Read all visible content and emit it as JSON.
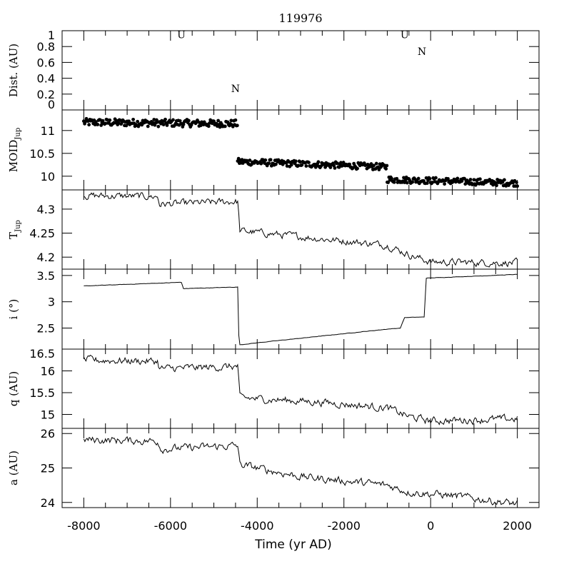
{
  "chart_data": {
    "type": "line",
    "title": "119976",
    "xlabel": "Time (yr AD)",
    "xlim": [
      -8500,
      2500
    ],
    "x_ticks": [
      "-8000",
      "-6000",
      "-4000",
      "-2000",
      "0",
      "2000"
    ],
    "x_tick_values": [
      -8000,
      -6000,
      -4000,
      -2000,
      0,
      2000
    ],
    "panels": [
      {
        "id": "dist",
        "type": "annotation",
        "ylabel": "Dist. (AU)",
        "ylim": [
          0,
          1
        ],
        "y_ticks": [
          "0",
          "0.2",
          "0.4",
          "0.6",
          "0.8",
          "1"
        ],
        "y_tick_values": [
          0,
          0.2,
          0.4,
          0.6,
          0.8,
          1
        ],
        "markers": [
          {
            "label": "U",
            "x": -5750,
            "y": 0.95
          },
          {
            "label": "N",
            "x": -4500,
            "y": 0.27
          },
          {
            "label": "U",
            "x": -600,
            "y": 0.95
          },
          {
            "label": "N",
            "x": -200,
            "y": 0.74
          }
        ]
      },
      {
        "id": "moid",
        "type": "scatter",
        "ylabel": "MOID",
        "ylabel_sub": "Jup",
        "ylim": [
          9.7,
          11.45
        ],
        "y_ticks": [
          "10",
          "10.5",
          "11"
        ],
        "y_tick_values": [
          10,
          10.5,
          11
        ],
        "segments": [
          {
            "x_start": -8000,
            "x_end": -4450,
            "y_start": 11.18,
            "y_end": 11.15,
            "amp": 0.08
          },
          {
            "x_start": -4450,
            "x_end": -1000,
            "y_start": 10.32,
            "y_end": 10.2,
            "amp": 0.07
          },
          {
            "x_start": -1000,
            "x_end": 2000,
            "y_start": 9.93,
            "y_end": 9.85,
            "amp": 0.07
          }
        ]
      },
      {
        "id": "tjup",
        "type": "line",
        "ylabel": "T",
        "ylabel_sub": "Jup",
        "ylim": [
          4.175,
          4.34
        ],
        "y_ticks": [
          "4.2",
          "4.25",
          "4.3"
        ],
        "y_tick_values": [
          4.2,
          4.25,
          4.3
        ],
        "breakpoints": [
          [
            -8000,
            4.328
          ],
          [
            -6300,
            4.326
          ],
          [
            -6250,
            4.31
          ],
          [
            -4450,
            4.316
          ],
          [
            -4400,
            4.255
          ],
          [
            -2500,
            4.238
          ],
          [
            -1000,
            4.225
          ],
          [
            -500,
            4.205
          ],
          [
            0,
            4.19
          ],
          [
            2000,
            4.188
          ]
        ],
        "amp": 0.006
      },
      {
        "id": "incl",
        "type": "line",
        "ylabel": "i (°)",
        "ylim": [
          2.1,
          3.62
        ],
        "y_ticks": [
          "2.5",
          "3",
          "3.5"
        ],
        "y_tick_values": [
          2.5,
          3,
          3.5
        ],
        "breakpoints": [
          [
            -8000,
            3.3
          ],
          [
            -5750,
            3.37
          ],
          [
            -5700,
            3.25
          ],
          [
            -4450,
            3.28
          ],
          [
            -4420,
            2.18
          ],
          [
            -4000,
            2.22
          ],
          [
            -1000,
            2.48
          ],
          [
            -700,
            2.5
          ],
          [
            -600,
            2.7
          ],
          [
            -150,
            2.71
          ],
          [
            -100,
            3.45
          ],
          [
            2000,
            3.52
          ]
        ],
        "amp": 0.003
      },
      {
        "id": "q",
        "type": "line",
        "ylabel": "q (AU)",
        "ylim": [
          14.68,
          16.5
        ],
        "y_ticks": [
          "15",
          "15.5",
          "16",
          "16.5"
        ],
        "y_tick_values": [
          15,
          15.5,
          16,
          16.5
        ],
        "breakpoints": [
          [
            -8000,
            16.25
          ],
          [
            -6300,
            16.22
          ],
          [
            -6250,
            16.05
          ],
          [
            -4450,
            16.1
          ],
          [
            -4400,
            15.38
          ],
          [
            -2500,
            15.28
          ],
          [
            -1000,
            15.15
          ],
          [
            -500,
            14.95
          ],
          [
            0,
            14.85
          ],
          [
            2000,
            14.9
          ]
        ],
        "amp": 0.07
      },
      {
        "id": "a",
        "type": "line",
        "ylabel": "a (AU)",
        "ylim": [
          23.85,
          26.15
        ],
        "y_ticks": [
          "24",
          "25",
          "26"
        ],
        "y_tick_values": [
          24,
          25,
          26
        ],
        "breakpoints": [
          [
            -8000,
            25.82
          ],
          [
            -6300,
            25.78
          ],
          [
            -6200,
            25.55
          ],
          [
            -4450,
            25.65
          ],
          [
            -4400,
            25.1
          ],
          [
            -3000,
            24.75
          ],
          [
            -1000,
            24.5
          ],
          [
            -500,
            24.3
          ],
          [
            500,
            24.2
          ],
          [
            2000,
            23.95
          ]
        ],
        "amp": 0.09
      }
    ]
  }
}
